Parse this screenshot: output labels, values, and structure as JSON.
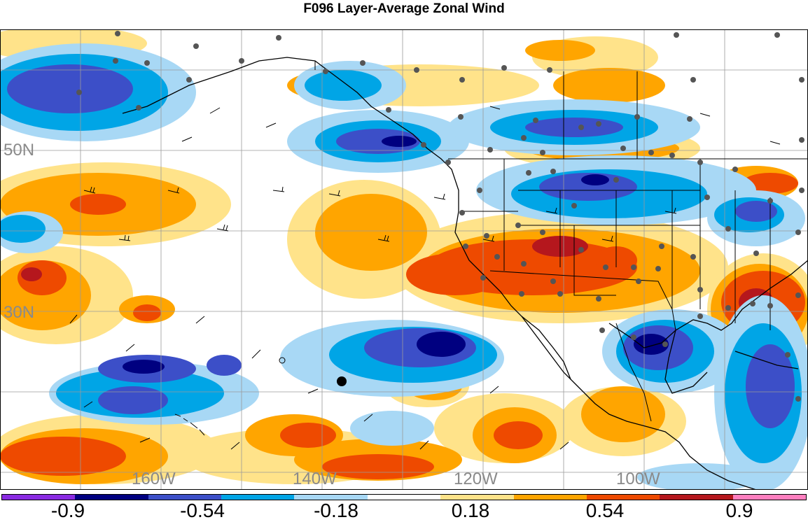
{
  "title": "F096 Layer-Average Zonal Wind",
  "lat_labels": [
    "50N",
    "30N"
  ],
  "lon_labels": [
    "160W",
    "140W",
    "120W",
    "100W"
  ],
  "colorbar": {
    "colors": [
      "#8a2be2",
      "#000080",
      "#3c4fc8",
      "#00a5e6",
      "#a8d8f5",
      "#ffffff",
      "#ffe38a",
      "#ffa500",
      "#ee4a00",
      "#b5171d",
      "#ff7fbf"
    ],
    "labels": [
      "-0.9",
      "-0.54",
      "-0.18",
      "0.18",
      "0.54",
      "0.9"
    ]
  }
}
